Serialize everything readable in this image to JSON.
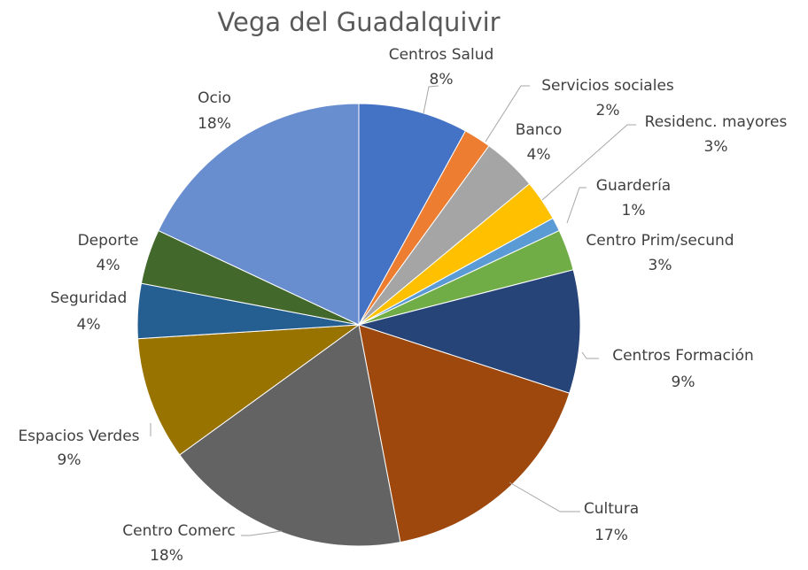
{
  "chart_data": {
    "type": "pie",
    "title": "Vega del Guadalquivir",
    "categories": [
      "Centros Salud",
      "Servicios sociales",
      "Banco",
      "Residenc. mayores",
      "Guardería",
      "Centro Prim/secund",
      "Centros Formación",
      "Cultura",
      "Centro Comerc",
      "Espacios Verdes",
      "Seguridad",
      "Deporte",
      "Ocio"
    ],
    "values": [
      8,
      2,
      4,
      3,
      1,
      3,
      9,
      17,
      18,
      9,
      4,
      4,
      18
    ],
    "value_labels": [
      "8%",
      "2%",
      "4%",
      "3%",
      "1%",
      "3%",
      "9%",
      "17%",
      "18%",
      "9%",
      "4%",
      "4%",
      "18%"
    ],
    "colors": [
      "#4472c4",
      "#ed7d31",
      "#a5a5a5",
      "#ffc000",
      "#5b9bd5",
      "#70ad47",
      "#264478",
      "#9e480e",
      "#636363",
      "#997300",
      "#255e91",
      "#43682b",
      "#698ed0"
    ]
  }
}
